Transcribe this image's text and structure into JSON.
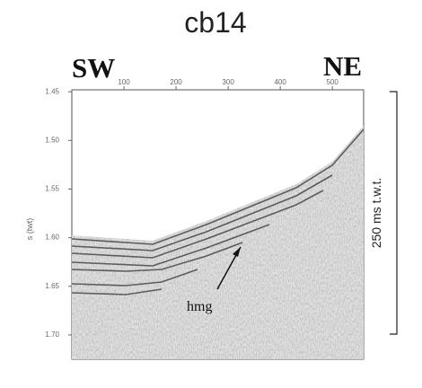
{
  "chart_data": {
    "type": "seismic",
    "title": "cb14",
    "y_label": "s (twt)",
    "xlim": [
      0,
      560
    ],
    "xticks": [
      100,
      200,
      300,
      400,
      500
    ],
    "ylim": [
      1.725,
      1.448
    ],
    "yticks": [
      1.45,
      {
        "value": 1.5,
        "label": "1.50"
      },
      1.55,
      {
        "value": 1.6,
        "label": "1.60"
      },
      1.65,
      {
        "value": 1.7,
        "label": "1.70"
      }
    ],
    "annotations": {
      "left_end": "SW",
      "right_end": "NE",
      "reflector": "hmg",
      "scale_bar": "250 ms t.w.t."
    }
  }
}
